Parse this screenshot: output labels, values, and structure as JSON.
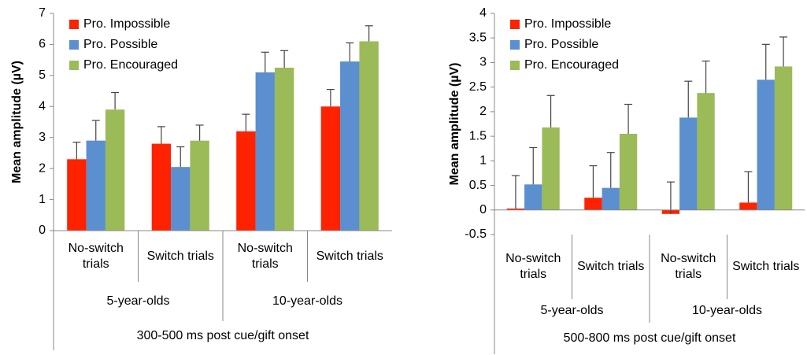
{
  "chart_data": [
    {
      "type": "bar",
      "ylabel": "Mean amplitude (µV)",
      "xlabel": "300-500 ms post cue/gift onset",
      "categories": [
        "No-switch trials",
        "Switch trials",
        "No-switch trials",
        "Switch trials"
      ],
      "groups": [
        "5-year-olds",
        "10-year-olds"
      ],
      "ylim": [
        0,
        7
      ],
      "yticks": [
        0,
        1,
        2,
        3,
        4,
        5,
        6,
        7
      ],
      "legend": "upper left",
      "series": [
        {
          "name": "Pro. Impossible",
          "color": "#ff2200",
          "values": [
            2.3,
            2.8,
            3.2,
            4.0
          ],
          "errors": [
            0.55,
            0.55,
            0.55,
            0.55
          ]
        },
        {
          "name": "Pro. Possible",
          "color": "#5b8fcf",
          "values": [
            2.9,
            2.05,
            5.1,
            5.45
          ],
          "errors": [
            0.65,
            0.65,
            0.65,
            0.6
          ]
        },
        {
          "name": "Pro. Encouraged",
          "color": "#9bbb59",
          "values": [
            3.9,
            2.9,
            5.25,
            6.1
          ],
          "errors": [
            0.55,
            0.5,
            0.55,
            0.5
          ]
        }
      ]
    },
    {
      "type": "bar",
      "ylabel": "Mean amplitude (µV)",
      "xlabel": "500-800 ms post cue/gift onset",
      "categories": [
        "No-switch trials",
        "Switch trials",
        "No-switch trials",
        "Switch trials"
      ],
      "groups": [
        "5-year-olds",
        "10-year-olds"
      ],
      "ylim": [
        -0.5,
        4
      ],
      "yticks": [
        -0.5,
        0,
        0.5,
        1,
        1.5,
        2,
        2.5,
        3,
        3.5,
        4
      ],
      "legend": "upper left",
      "series": [
        {
          "name": "Pro. Impossible",
          "color": "#ff2200",
          "values": [
            0.03,
            0.25,
            -0.08,
            0.15
          ],
          "errors": [
            0.67,
            0.65,
            0.65,
            0.63
          ]
        },
        {
          "name": "Pro. Possible",
          "color": "#5b8fcf",
          "values": [
            0.52,
            0.45,
            1.88,
            2.65
          ],
          "errors": [
            0.75,
            0.72,
            0.74,
            0.72
          ]
        },
        {
          "name": "Pro. Encouraged",
          "color": "#9bbb59",
          "values": [
            1.68,
            1.55,
            2.38,
            2.92
          ],
          "errors": [
            0.65,
            0.6,
            0.65,
            0.6
          ]
        }
      ]
    }
  ]
}
